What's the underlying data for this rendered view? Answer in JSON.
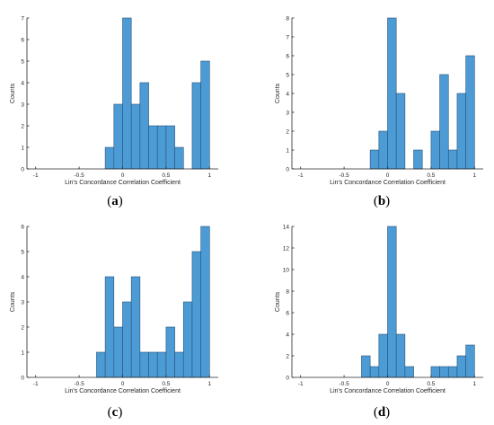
{
  "chart_data": [
    {
      "id": "a",
      "type": "bar",
      "panel_label": "(a)",
      "xlabel": "Lin's Concordance Correlation Coefficient",
      "ylabel": "Counts",
      "xlim": [
        -1.1,
        1.1
      ],
      "ylim": [
        0,
        7
      ],
      "x_ticks": [
        -1,
        -0.5,
        0,
        0.5,
        1
      ],
      "x_tick_labels": [
        "-1",
        "-0.5",
        "0",
        "0.5",
        "1"
      ],
      "y_ticks": [
        0,
        1,
        2,
        3,
        4,
        5,
        6,
        7
      ],
      "bin_width": 0.1,
      "bins": [
        {
          "start": -0.2,
          "count": 1
        },
        {
          "start": -0.1,
          "count": 3
        },
        {
          "start": 0.0,
          "count": 7
        },
        {
          "start": 0.1,
          "count": 3
        },
        {
          "start": 0.2,
          "count": 4
        },
        {
          "start": 0.3,
          "count": 2
        },
        {
          "start": 0.4,
          "count": 2
        },
        {
          "start": 0.5,
          "count": 2
        },
        {
          "start": 0.6,
          "count": 1
        },
        {
          "start": 0.8,
          "count": 4
        },
        {
          "start": 0.9,
          "count": 5
        }
      ]
    },
    {
      "id": "b",
      "type": "bar",
      "panel_label": "(b)",
      "xlabel": "Lin's Concordance Correlation Coefficient",
      "ylabel": "Counts",
      "xlim": [
        -1.1,
        1.1
      ],
      "ylim": [
        0,
        8
      ],
      "x_ticks": [
        -1,
        -0.5,
        0,
        0.5,
        1
      ],
      "x_tick_labels": [
        "-1",
        "-0.5",
        "0",
        "0.5",
        "1"
      ],
      "y_ticks": [
        0,
        1,
        2,
        3,
        4,
        5,
        6,
        7,
        8
      ],
      "bin_width": 0.1,
      "bins": [
        {
          "start": -0.2,
          "count": 1
        },
        {
          "start": -0.1,
          "count": 2
        },
        {
          "start": 0.0,
          "count": 8
        },
        {
          "start": 0.1,
          "count": 4
        },
        {
          "start": 0.3,
          "count": 1
        },
        {
          "start": 0.5,
          "count": 2
        },
        {
          "start": 0.6,
          "count": 5
        },
        {
          "start": 0.7,
          "count": 1
        },
        {
          "start": 0.8,
          "count": 4
        },
        {
          "start": 0.9,
          "count": 6
        }
      ]
    },
    {
      "id": "c",
      "type": "bar",
      "panel_label": "(c)",
      "xlabel": "Lin's Concordance Correlation Coefficient",
      "ylabel": "Counts",
      "xlim": [
        -1.1,
        1.1
      ],
      "ylim": [
        0,
        6
      ],
      "x_ticks": [
        -1,
        -0.5,
        0,
        0.5,
        1
      ],
      "x_tick_labels": [
        "-1",
        "-0.5",
        "0",
        "0.5",
        "1"
      ],
      "y_ticks": [
        0,
        1,
        2,
        3,
        4,
        5,
        6
      ],
      "bin_width": 0.1,
      "bins": [
        {
          "start": -0.3,
          "count": 1
        },
        {
          "start": -0.2,
          "count": 4
        },
        {
          "start": -0.1,
          "count": 2
        },
        {
          "start": 0.0,
          "count": 3
        },
        {
          "start": 0.1,
          "count": 4
        },
        {
          "start": 0.2,
          "count": 1
        },
        {
          "start": 0.3,
          "count": 1
        },
        {
          "start": 0.4,
          "count": 1
        },
        {
          "start": 0.5,
          "count": 2
        },
        {
          "start": 0.6,
          "count": 1
        },
        {
          "start": 0.7,
          "count": 3
        },
        {
          "start": 0.8,
          "count": 5
        },
        {
          "start": 0.9,
          "count": 6
        }
      ]
    },
    {
      "id": "d",
      "type": "bar",
      "panel_label": "(d)",
      "xlabel": "Lin's Concordance Correlation Coefficient",
      "ylabel": "Counts",
      "xlim": [
        -1.1,
        1.1
      ],
      "ylim": [
        0,
        14
      ],
      "x_ticks": [
        -1,
        -0.5,
        0,
        0.5,
        1
      ],
      "x_tick_labels": [
        "-1",
        "-0.5",
        "0",
        "0.5",
        "1"
      ],
      "y_ticks": [
        0,
        2,
        4,
        6,
        8,
        10,
        12,
        14
      ],
      "bin_width": 0.1,
      "bins": [
        {
          "start": -0.3,
          "count": 2
        },
        {
          "start": -0.2,
          "count": 1
        },
        {
          "start": -0.1,
          "count": 4
        },
        {
          "start": 0.0,
          "count": 14
        },
        {
          "start": 0.1,
          "count": 4
        },
        {
          "start": 0.2,
          "count": 1
        },
        {
          "start": 0.5,
          "count": 1
        },
        {
          "start": 0.6,
          "count": 1
        },
        {
          "start": 0.7,
          "count": 1
        },
        {
          "start": 0.8,
          "count": 2
        },
        {
          "start": 0.9,
          "count": 3
        }
      ]
    }
  ]
}
